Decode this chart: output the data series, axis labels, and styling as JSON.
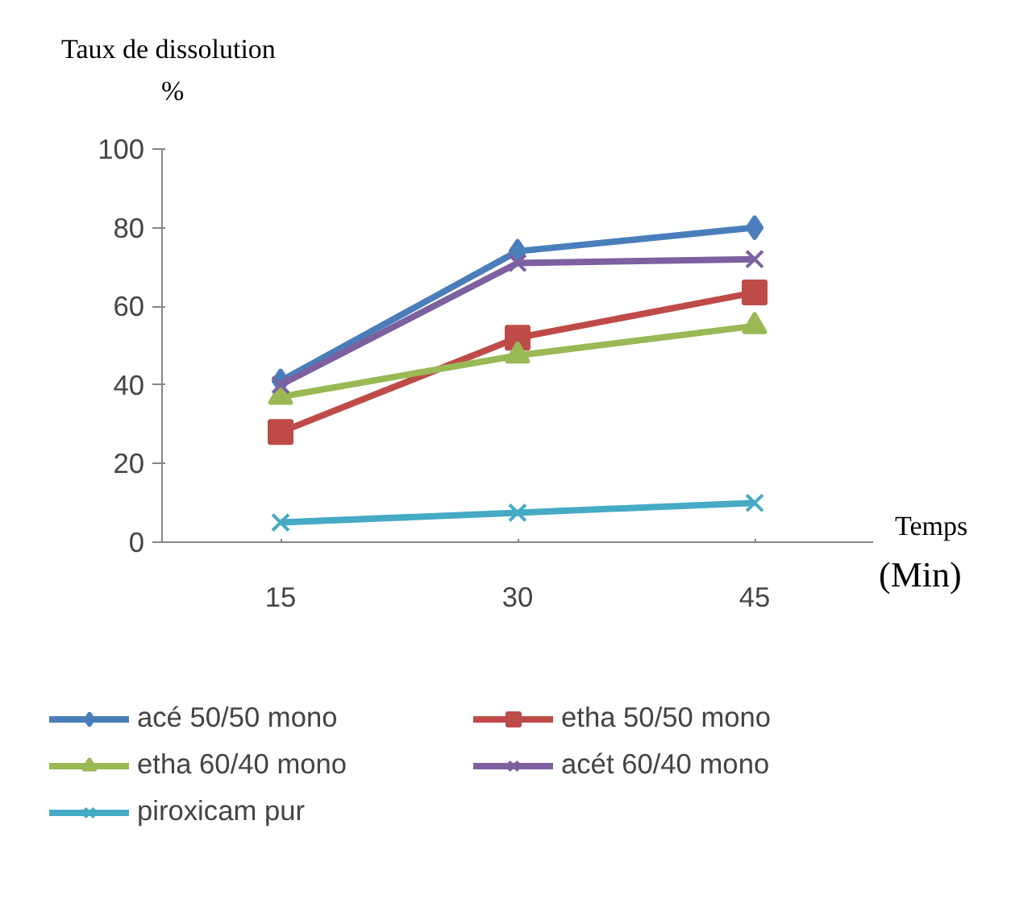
{
  "chart_data": {
    "type": "line",
    "ylabel": "Taux de dissolution\n%",
    "xlabel": "Temps\n(Min)",
    "categories": [
      "15",
      "30",
      "45"
    ],
    "series": [
      {
        "name": "acé 50/50 mono",
        "color": "#4a7ebb",
        "marker": "diamond",
        "values": [
          41,
          74,
          80
        ]
      },
      {
        "name": "etha 50/50 mono",
        "color": "#be4b48",
        "marker": "square",
        "values": [
          28,
          52,
          63.5
        ]
      },
      {
        "name": "etha 60/40 mono",
        "color": "#98b954",
        "marker": "triangle",
        "values": [
          37,
          47.5,
          55
        ]
      },
      {
        "name": "acét 60/40 mono",
        "color": "#7d60a0",
        "marker": "cross",
        "values": [
          40,
          71,
          72
        ]
      },
      {
        "name": "piroxicam pur",
        "color": "#46aac5",
        "marker": "cross",
        "values": [
          5,
          7.5,
          10
        ]
      }
    ],
    "ylim": [
      0,
      100
    ],
    "yticks": [
      0,
      20,
      40,
      60,
      80,
      100
    ],
    "grid": false,
    "legend": "bottom"
  }
}
